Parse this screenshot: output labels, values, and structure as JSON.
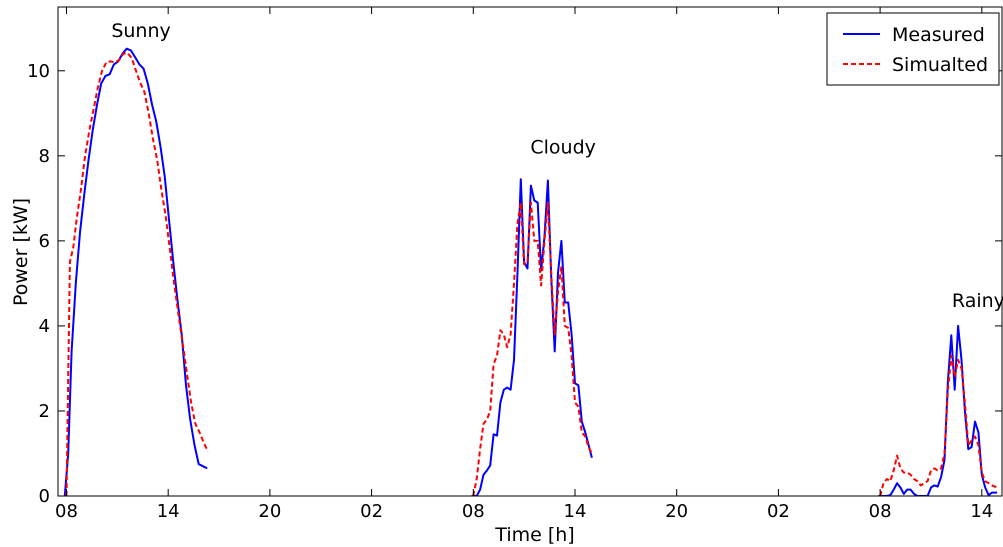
{
  "chart_data": {
    "type": "line",
    "title": "",
    "xlabel": "Time [h]",
    "ylabel": "Power [kW]",
    "ylim": [
      0,
      11.5
    ],
    "yticks": [
      0,
      2,
      4,
      6,
      8,
      10
    ],
    "xlim": [
      7.5,
      63.25
    ],
    "xticks": [
      {
        "value": 8,
        "label": "08"
      },
      {
        "value": 14,
        "label": "14"
      },
      {
        "value": 20,
        "label": "20"
      },
      {
        "value": 26,
        "label": "02"
      },
      {
        "value": 32,
        "label": "08"
      },
      {
        "value": 38,
        "label": "14"
      },
      {
        "value": 44,
        "label": "20"
      },
      {
        "value": 50,
        "label": "02"
      },
      {
        "value": 56,
        "label": "08"
      },
      {
        "value": 62,
        "label": "14"
      }
    ],
    "grid": false,
    "legend_position": "top-right",
    "annotations": [
      {
        "text": "Sunny",
        "x": 12.4,
        "y": 10.8
      },
      {
        "text": "Cloudy",
        "x": 37.3,
        "y": 8.05
      },
      {
        "text": "Rainy",
        "x": 61.8,
        "y": 4.45
      }
    ],
    "series": [
      {
        "name": "Measured",
        "color": "#0000ff",
        "style": "solid",
        "segments": [
          [
            [
              7.9,
              0
            ],
            [
              8.1,
              1.0
            ],
            [
              8.3,
              3.4
            ],
            [
              8.55,
              5.0
            ],
            [
              8.8,
              6.2
            ],
            [
              9.05,
              7.1
            ],
            [
              9.3,
              7.9
            ],
            [
              9.55,
              8.6
            ],
            [
              9.8,
              9.2
            ],
            [
              10.05,
              9.7
            ],
            [
              10.3,
              9.88
            ],
            [
              10.55,
              9.92
            ],
            [
              10.8,
              10.15
            ],
            [
              11.05,
              10.22
            ],
            [
              11.3,
              10.4
            ],
            [
              11.55,
              10.52
            ],
            [
              11.8,
              10.48
            ],
            [
              12.05,
              10.32
            ],
            [
              12.3,
              10.15
            ],
            [
              12.55,
              10.05
            ],
            [
              12.8,
              9.7
            ],
            [
              13.05,
              9.2
            ],
            [
              13.3,
              8.8
            ],
            [
              13.55,
              8.2
            ],
            [
              13.8,
              7.5
            ],
            [
              14.05,
              6.5
            ],
            [
              14.3,
              5.5
            ],
            [
              14.55,
              4.6
            ],
            [
              14.8,
              3.8
            ],
            [
              15.05,
              2.6
            ],
            [
              15.3,
              1.8
            ],
            [
              15.55,
              1.2
            ],
            [
              15.8,
              0.75
            ],
            [
              16.05,
              0.7
            ],
            [
              16.3,
              0.65
            ]
          ],
          [
            [
              31.9,
              0
            ],
            [
              32.2,
              0
            ],
            [
              32.4,
              0.15
            ],
            [
              32.6,
              0.5
            ],
            [
              32.8,
              0.6
            ],
            [
              33.0,
              0.72
            ],
            [
              33.2,
              1.45
            ],
            [
              33.4,
              1.42
            ],
            [
              33.6,
              2.2
            ],
            [
              33.8,
              2.5
            ],
            [
              34.0,
              2.55
            ],
            [
              34.2,
              2.5
            ],
            [
              34.4,
              3.2
            ],
            [
              34.6,
              5.2
            ],
            [
              34.8,
              7.45
            ],
            [
              35.0,
              5.5
            ],
            [
              35.2,
              5.35
            ],
            [
              35.4,
              7.3
            ],
            [
              35.6,
              6.95
            ],
            [
              35.8,
              6.9
            ],
            [
              36.0,
              5.3
            ],
            [
              36.2,
              6.1
            ],
            [
              36.4,
              7.42
            ],
            [
              36.6,
              5.1
            ],
            [
              36.8,
              3.4
            ],
            [
              37.0,
              5.25
            ],
            [
              37.2,
              6.0
            ],
            [
              37.4,
              4.55
            ],
            [
              37.6,
              4.55
            ],
            [
              37.8,
              3.8
            ],
            [
              38.0,
              2.65
            ],
            [
              38.2,
              2.6
            ],
            [
              38.4,
              1.75
            ],
            [
              38.6,
              1.5
            ],
            [
              38.8,
              1.2
            ],
            [
              39.0,
              0.9
            ]
          ],
          [
            [
              55.9,
              0
            ],
            [
              56.2,
              0
            ],
            [
              56.4,
              0
            ],
            [
              56.6,
              0.02
            ],
            [
              56.8,
              0.15
            ],
            [
              57.0,
              0.3
            ],
            [
              57.2,
              0.2
            ],
            [
              57.4,
              0.05
            ],
            [
              57.6,
              0.15
            ],
            [
              57.8,
              0.15
            ],
            [
              58.0,
              0.05
            ],
            [
              58.2,
              0
            ],
            [
              58.4,
              0
            ],
            [
              58.6,
              0
            ],
            [
              58.8,
              0
            ],
            [
              59.0,
              0.2
            ],
            [
              59.2,
              0.25
            ],
            [
              59.4,
              0.22
            ],
            [
              59.6,
              0.45
            ],
            [
              59.8,
              0.85
            ],
            [
              60.0,
              2.7
            ],
            [
              60.2,
              3.78
            ],
            [
              60.4,
              2.5
            ],
            [
              60.6,
              4.0
            ],
            [
              60.8,
              3.2
            ],
            [
              61.0,
              2.0
            ],
            [
              61.2,
              1.1
            ],
            [
              61.4,
              1.15
            ],
            [
              61.6,
              1.75
            ],
            [
              61.8,
              1.5
            ],
            [
              62.0,
              0.5
            ],
            [
              62.2,
              0.2
            ],
            [
              62.4,
              0.02
            ],
            [
              62.6,
              0.08
            ],
            [
              62.9,
              0.08
            ]
          ]
        ]
      },
      {
        "name": "Simualted",
        "color": "#ff0000",
        "style": "dashed",
        "segments": [
          [
            [
              8.0,
              0
            ],
            [
              8.2,
              5.5
            ],
            [
              8.4,
              5.85
            ],
            [
              8.6,
              6.5
            ],
            [
              8.85,
              7.2
            ],
            [
              9.1,
              8.0
            ],
            [
              9.35,
              8.6
            ],
            [
              9.6,
              9.1
            ],
            [
              9.85,
              9.6
            ],
            [
              10.1,
              10.0
            ],
            [
              10.35,
              10.2
            ],
            [
              10.6,
              10.22
            ],
            [
              10.85,
              10.2
            ],
            [
              11.1,
              10.25
            ],
            [
              11.35,
              10.4
            ],
            [
              11.6,
              10.42
            ],
            [
              11.85,
              10.3
            ],
            [
              12.1,
              10.0
            ],
            [
              12.35,
              9.72
            ],
            [
              12.6,
              9.5
            ],
            [
              12.85,
              9.0
            ],
            [
              13.1,
              8.4
            ],
            [
              13.35,
              7.9
            ],
            [
              13.6,
              7.2
            ],
            [
              13.85,
              6.6
            ],
            [
              14.1,
              5.8
            ],
            [
              14.35,
              5.0
            ],
            [
              14.6,
              4.3
            ],
            [
              14.85,
              3.6
            ],
            [
              15.1,
              2.9
            ],
            [
              15.35,
              2.2
            ],
            [
              15.6,
              1.7
            ],
            [
              15.85,
              1.5
            ],
            [
              16.1,
              1.25
            ],
            [
              16.35,
              1.05
            ]
          ],
          [
            [
              32.0,
              0
            ],
            [
              32.2,
              0.4
            ],
            [
              32.4,
              1.1
            ],
            [
              32.6,
              1.7
            ],
            [
              32.8,
              1.8
            ],
            [
              33.0,
              2.0
            ],
            [
              33.2,
              3.1
            ],
            [
              33.4,
              3.3
            ],
            [
              33.6,
              3.9
            ],
            [
              33.8,
              3.8
            ],
            [
              34.0,
              3.5
            ],
            [
              34.2,
              3.8
            ],
            [
              34.4,
              5.0
            ],
            [
              34.6,
              6.4
            ],
            [
              34.8,
              6.9
            ],
            [
              35.0,
              5.45
            ],
            [
              35.2,
              5.5
            ],
            [
              35.4,
              6.9
            ],
            [
              35.6,
              6.0
            ],
            [
              35.8,
              6.0
            ],
            [
              36.0,
              4.95
            ],
            [
              36.2,
              6.0
            ],
            [
              36.4,
              6.9
            ],
            [
              36.6,
              5.2
            ],
            [
              36.8,
              3.8
            ],
            [
              37.0,
              4.8
            ],
            [
              37.2,
              5.4
            ],
            [
              37.4,
              4.0
            ],
            [
              37.6,
              3.95
            ],
            [
              37.8,
              3.3
            ],
            [
              38.0,
              2.2
            ],
            [
              38.2,
              2.1
            ],
            [
              38.4,
              1.5
            ],
            [
              38.6,
              1.4
            ],
            [
              38.8,
              1.15
            ],
            [
              39.0,
              1.0
            ]
          ],
          [
            [
              56.0,
              0
            ],
            [
              56.2,
              0.3
            ],
            [
              56.4,
              0.4
            ],
            [
              56.6,
              0.35
            ],
            [
              56.8,
              0.6
            ],
            [
              57.0,
              0.95
            ],
            [
              57.2,
              0.65
            ],
            [
              57.4,
              0.55
            ],
            [
              57.6,
              0.55
            ],
            [
              57.8,
              0.5
            ],
            [
              58.0,
              0.4
            ],
            [
              58.2,
              0.35
            ],
            [
              58.4,
              0.25
            ],
            [
              58.6,
              0.3
            ],
            [
              58.8,
              0.35
            ],
            [
              59.0,
              0.6
            ],
            [
              59.2,
              0.65
            ],
            [
              59.4,
              0.6
            ],
            [
              59.6,
              0.65
            ],
            [
              59.8,
              1.0
            ],
            [
              60.0,
              2.5
            ],
            [
              60.2,
              3.3
            ],
            [
              60.4,
              2.8
            ],
            [
              60.6,
              3.2
            ],
            [
              60.8,
              3.0
            ],
            [
              61.0,
              2.2
            ],
            [
              61.2,
              1.2
            ],
            [
              61.4,
              1.3
            ],
            [
              61.6,
              1.4
            ],
            [
              61.8,
              1.2
            ],
            [
              62.0,
              0.55
            ],
            [
              62.2,
              0.35
            ],
            [
              62.4,
              0.3
            ],
            [
              62.6,
              0.25
            ],
            [
              62.9,
              0.2
            ]
          ]
        ]
      }
    ]
  }
}
